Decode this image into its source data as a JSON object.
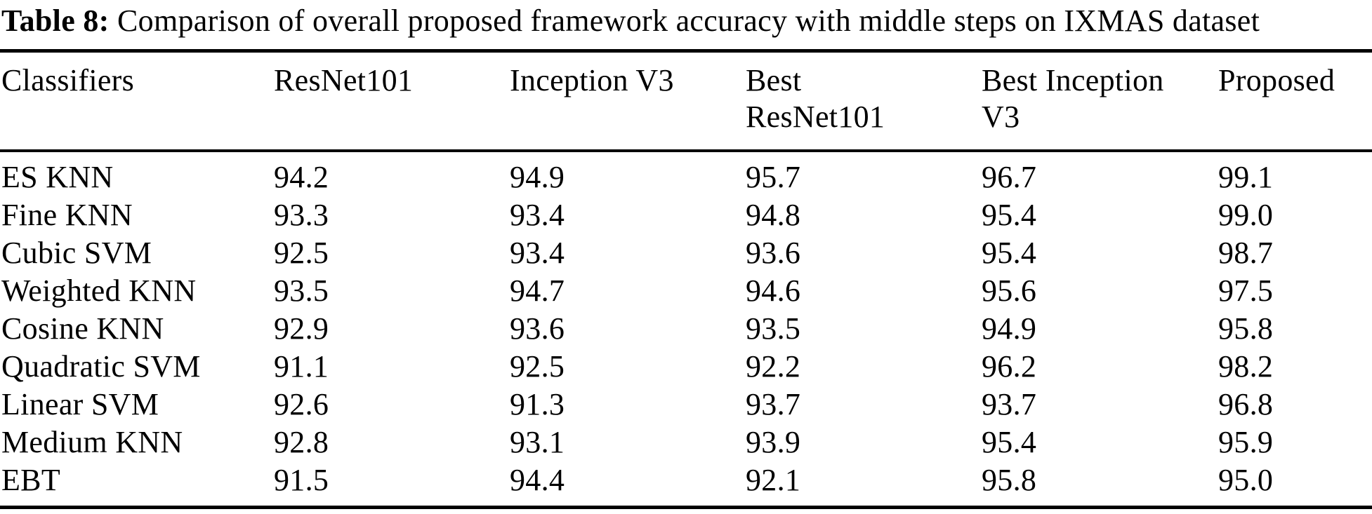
{
  "caption": {
    "label": "Table 8:",
    "text": "Comparison of overall proposed framework accuracy with middle steps on IXMAS dataset"
  },
  "table": {
    "headers": [
      "Classifiers",
      "ResNet101",
      "Inception V3",
      "Best ResNet101",
      "Best Inception V3",
      "Proposed"
    ],
    "rows": [
      [
        "ES KNN",
        "94.2",
        "94.9",
        "95.7",
        "96.7",
        "99.1"
      ],
      [
        "Fine KNN",
        "93.3",
        "93.4",
        "94.8",
        "95.4",
        "99.0"
      ],
      [
        "Cubic SVM",
        "92.5",
        "93.4",
        "93.6",
        "95.4",
        "98.7"
      ],
      [
        "Weighted KNN",
        "93.5",
        "94.7",
        "94.6",
        "95.6",
        "97.5"
      ],
      [
        "Cosine KNN",
        "92.9",
        "93.6",
        "93.5",
        "94.9",
        "95.8"
      ],
      [
        "Quadratic SVM",
        "91.1",
        "92.5",
        "92.2",
        "96.2",
        "98.2"
      ],
      [
        "Linear SVM",
        "92.6",
        "91.3",
        "93.7",
        "93.7",
        "96.8"
      ],
      [
        "Medium KNN",
        "92.8",
        "93.1",
        "93.9",
        "95.4",
        "95.9"
      ],
      [
        "EBT",
        "91.5",
        "94.4",
        "92.1",
        "95.8",
        "95.0"
      ]
    ]
  },
  "colors": {
    "text": "#000000",
    "background": "#ffffff",
    "rule": "#000000"
  }
}
